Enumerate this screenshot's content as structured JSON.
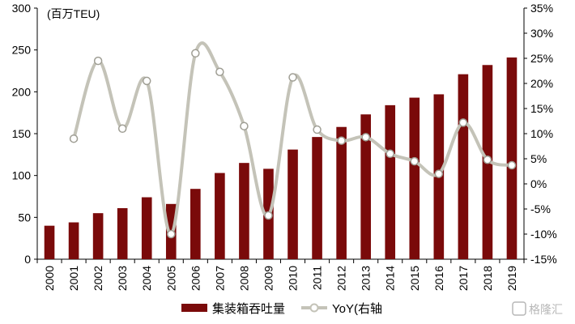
{
  "chart_data": {
    "type": "bar+line",
    "categories": [
      "2000",
      "2001",
      "2002",
      "2003",
      "2004",
      "2005",
      "2006",
      "2007",
      "2008",
      "2009",
      "2010",
      "2011",
      "2012",
      "2013",
      "2014",
      "2015",
      "2016",
      "2017",
      "2018",
      "2019"
    ],
    "series": [
      {
        "name": "集装箱吞吐量",
        "type": "bar",
        "axis": "left",
        "color": "#7a0a0a",
        "values": [
          40,
          44,
          55,
          61,
          74,
          66,
          84,
          103,
          115,
          108,
          131,
          146,
          158,
          173,
          184,
          193,
          197,
          221,
          232,
          241
        ]
      },
      {
        "name": "YoY(右轴",
        "type": "line",
        "axis": "right",
        "color": "#c4c3b8",
        "values": [
          null,
          9.0,
          24.5,
          11.0,
          20.5,
          -10.0,
          26.0,
          22.3,
          11.5,
          -6.3,
          21.2,
          10.8,
          8.6,
          9.3,
          6.0,
          4.5,
          2.0,
          12.2,
          4.8,
          3.7
        ]
      }
    ],
    "y_left": {
      "unit_label": "(百万TEU)",
      "ylim": [
        0,
        300
      ],
      "ticks": [
        "0",
        "50",
        "100",
        "150",
        "200",
        "250",
        "300"
      ]
    },
    "y_right": {
      "ylim": [
        -15,
        35
      ],
      "ticks": [
        "-15%",
        "-10%",
        "-5%",
        "0%",
        "5%",
        "10%",
        "15%",
        "20%",
        "25%",
        "30%",
        "35%"
      ]
    },
    "legend": {
      "placement": "bottom"
    },
    "grid": false
  },
  "watermark": {
    "text": "格隆汇"
  }
}
